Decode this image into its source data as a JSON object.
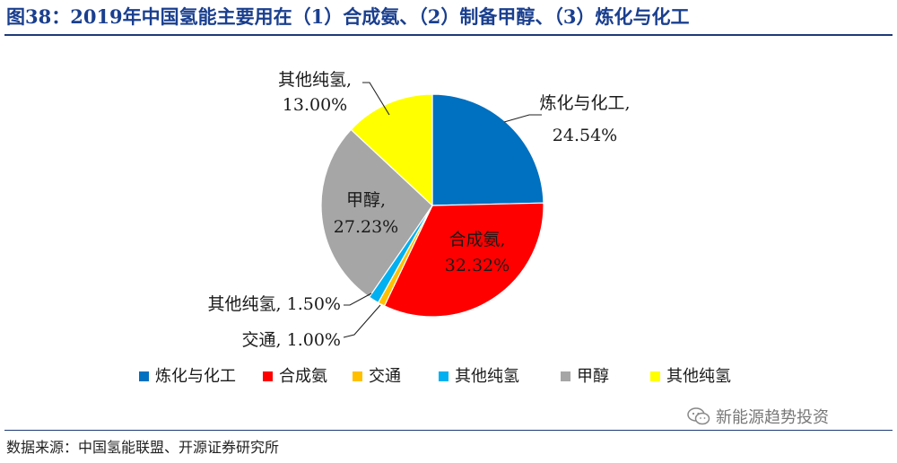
{
  "header": {
    "title": "图38：2019年中国氢能主要用在（1）合成氨、（2）制备甲醇、（3）炼化与化工"
  },
  "chart_data": {
    "type": "pie",
    "title": "图38：2019年中国氢能主要用在（1）合成氨、（2）制备甲醇、（3）炼化与化工",
    "series": [
      {
        "name": "炼化与化工",
        "value": 24.54,
        "value_label": "24.54%",
        "color": "#0070c0"
      },
      {
        "name": "合成氨",
        "value": 32.32,
        "value_label": "32.32%",
        "color": "#ff0000"
      },
      {
        "name": "交通",
        "value": 1.0,
        "value_label": "1.00%",
        "color": "#ffc000"
      },
      {
        "name": "其他纯氢",
        "value": 1.5,
        "value_label": "1.50%",
        "color": "#00b0f0"
      },
      {
        "name": "甲醇",
        "value": 27.23,
        "value_label": "27.23%",
        "color": "#a6a6a6"
      },
      {
        "name": "其他纯氢",
        "value": 13.0,
        "value_label": "13.00%",
        "color": "#ffff00"
      }
    ],
    "legend_position": "bottom"
  },
  "footer": {
    "source": "数据来源：中国氢能联盟、开源证券研究所",
    "watermark": "新能源趋势投资"
  },
  "colors": {
    "title": "#1a3f8f",
    "rule": "#1e3a78"
  }
}
